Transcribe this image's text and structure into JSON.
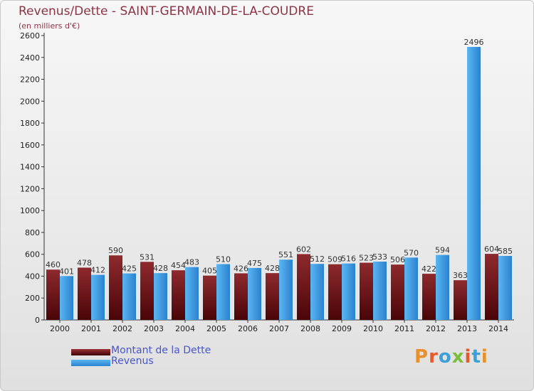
{
  "header": {
    "title": "Revenus/Dette - SAINT-GERMAIN-DE-LA-COUDRE",
    "subtitle": "(en milliers d'€)"
  },
  "legend": {
    "items": [
      {
        "label": "Montant de la Dette",
        "color": "#7a1a1f"
      },
      {
        "label": "Revenus",
        "color": "#3d9ae0"
      }
    ]
  },
  "logo": {
    "text": "Proxiti"
  },
  "colors": {
    "dette_top": "#8e2a2e",
    "dette_bottom": "#4a0508",
    "revenus_top": "#5ab6f2",
    "revenus_bottom": "#2b82cf",
    "title": "#8b3446",
    "legend_text": "#4a55c8"
  },
  "chart_data": {
    "type": "bar",
    "categories": [
      "2000",
      "2001",
      "2002",
      "2003",
      "2004",
      "2005",
      "2006",
      "2007",
      "2008",
      "2009",
      "2010",
      "2011",
      "2012",
      "2013",
      "2014"
    ],
    "series": [
      {
        "name": "Montant de la Dette",
        "values": [
          460,
          478,
          590,
          531,
          454,
          405,
          426,
          428,
          602,
          509,
          523,
          506,
          422,
          363,
          604
        ]
      },
      {
        "name": "Revenus",
        "values": [
          401,
          412,
          425,
          428,
          483,
          510,
          475,
          551,
          512,
          516,
          533,
          570,
          594,
          2496,
          585
        ]
      }
    ],
    "ylim": [
      0,
      2600
    ],
    "yticks": [
      0,
      200,
      400,
      600,
      800,
      1000,
      1200,
      1400,
      1600,
      1800,
      2000,
      2200,
      2400,
      2600
    ],
    "grid": false,
    "legend_position": "bottom-left"
  }
}
